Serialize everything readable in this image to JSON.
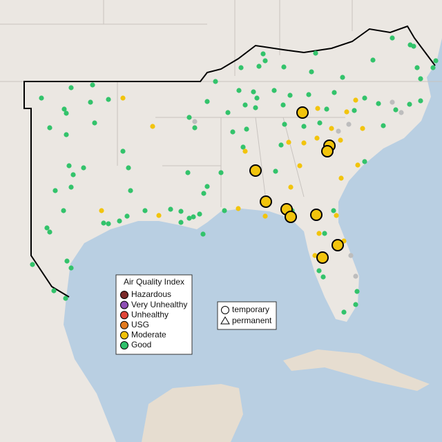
{
  "legend": {
    "title": "Air Quality Index",
    "items": [
      "Hazardous",
      "Very Unhealthy",
      "Unhealthy",
      "USG",
      "Moderate",
      "Good"
    ]
  },
  "shape_legend": {
    "items": [
      "temporary",
      "permanent"
    ]
  }
}
